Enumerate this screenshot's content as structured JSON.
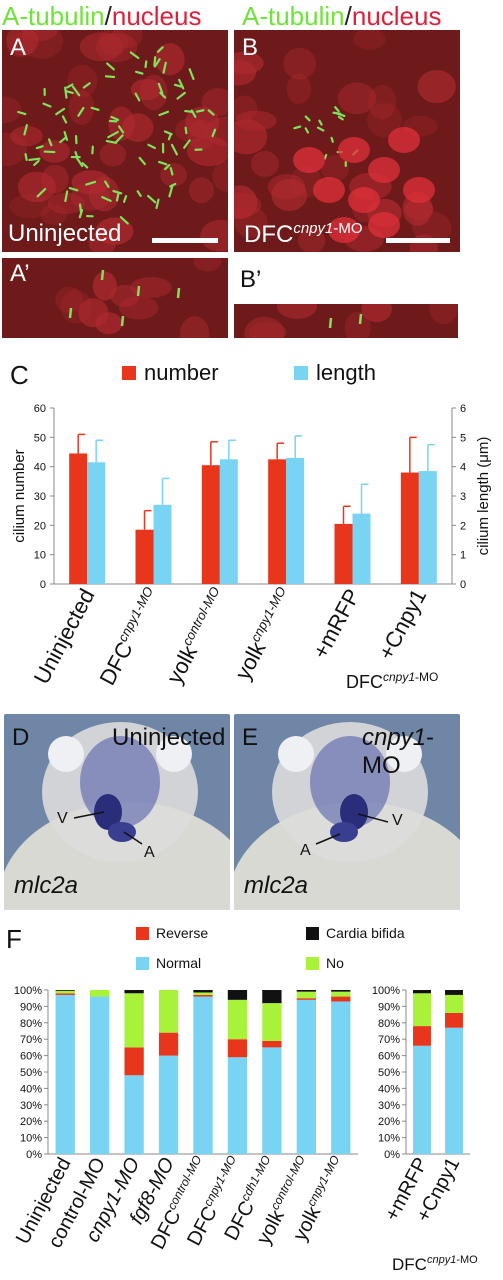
{
  "panel_A": {
    "letter": "A",
    "title_green": "A-tubulin",
    "slash": "/",
    "title_red": "nucleus",
    "label": "Uninjected"
  },
  "panel_B": {
    "letter": "B",
    "title_green": "A-tubulin",
    "slash": "/",
    "title_red": "nucleus",
    "label_main": "DFC",
    "label_sup": "cnpy1",
    "label_suffix": "-MO"
  },
  "panel_A2": {
    "letter": "A’"
  },
  "panel_B2": {
    "letter": "B’"
  },
  "panel_D": {
    "letter": "D",
    "label": "Uninjected",
    "gene": "mlc2a",
    "V": "V",
    "A": "A"
  },
  "panel_E": {
    "letter": "E",
    "label_it": "cnpy1",
    "label_rest": "-MO",
    "gene": "mlc2a",
    "V": "V",
    "A": "A"
  },
  "colors": {
    "number": "#e8361c",
    "length": "#79d3f2",
    "normal": "#79d3f2",
    "reverse": "#e8361c",
    "bifida": "#111111",
    "no": "#a8f23a",
    "cilia": "#7de35a",
    "tissue": "#6e1a1a"
  },
  "chart_data": [
    {
      "letter": "C",
      "type": "bar",
      "categories": [
        {
          "main": "Uninjected",
          "sup": ""
        },
        {
          "main": "DFC",
          "sup": "cnpy1-MO"
        },
        {
          "main": "yolk",
          "sup": "control-MO"
        },
        {
          "main": "yolk",
          "sup": "cnpy1-MO"
        },
        {
          "main": "+mRFP",
          "sup": ""
        },
        {
          "main": "+Cnpy1",
          "sup": ""
        }
      ],
      "group_label": {
        "main": "DFC",
        "sup": "cnpy1",
        "suffix": "-MO"
      },
      "series": [
        {
          "name": "number",
          "values": [
            44.5,
            18.5,
            40.5,
            42.5,
            20.5,
            38
          ],
          "errors": [
            6.5,
            6.5,
            8,
            5.5,
            6,
            12
          ],
          "axis": "left"
        },
        {
          "name": "length",
          "values": [
            4.15,
            2.7,
            4.25,
            4.3,
            2.4,
            3.85
          ],
          "errors": [
            0.75,
            0.9,
            0.65,
            0.75,
            1.0,
            0.9
          ],
          "axis": "right"
        }
      ],
      "ylabel": "cilium number",
      "y2label": "cilium length (μm)",
      "ylim": [
        0,
        60
      ],
      "y2lim": [
        0,
        6
      ],
      "yticks": [
        "0",
        "10",
        "20",
        "30",
        "40",
        "50",
        "60"
      ],
      "y2ticks": [
        "0",
        "1",
        "2",
        "3",
        "4",
        "5",
        "6"
      ],
      "grid": false,
      "legend": "top"
    },
    {
      "letter": "F",
      "type": "bar",
      "stacked": true,
      "categories": [
        {
          "main": "Uninjected",
          "sup": ""
        },
        {
          "main": "control-MO",
          "sup": ""
        },
        {
          "main": "cnpy1-MO",
          "sup": ""
        },
        {
          "main": "fgf8-MO",
          "sup": ""
        },
        {
          "main": "DFC",
          "sup": "control-MO"
        },
        {
          "main": "DFC",
          "sup": "cnpy1-MO"
        },
        {
          "main": "DFC",
          "sup": "cdh1-MO"
        },
        {
          "main": "yolk",
          "sup": "control-MO"
        },
        {
          "main": "yolk",
          "sup": "cnpy1-MO"
        }
      ],
      "series": [
        {
          "name": "Normal",
          "values": [
            97,
            96,
            48,
            60,
            96,
            59,
            65,
            94,
            93
          ]
        },
        {
          "name": "Reverse",
          "values": [
            1,
            0,
            17,
            14,
            1,
            11,
            4,
            1,
            3
          ]
        },
        {
          "name": "No",
          "values": [
            1.5,
            4,
            33,
            26,
            1.5,
            24,
            23,
            4,
            3
          ]
        },
        {
          "name": "Cardia bifida",
          "values": [
            0.5,
            0,
            2,
            0,
            1.5,
            6,
            8,
            1,
            1
          ]
        }
      ],
      "yticks": [
        "0%",
        "10%",
        "20%",
        "30%",
        "40%",
        "50%",
        "60%",
        "70%",
        "80%",
        "90%",
        "100%"
      ],
      "ylim": [
        0,
        100
      ],
      "legend": "top"
    },
    {
      "type": "bar",
      "stacked": true,
      "categories": [
        {
          "main": "+mRFP",
          "sup": ""
        },
        {
          "main": "+Cnpy1",
          "sup": ""
        }
      ],
      "group_label": {
        "main": "DFC",
        "sup": "cnpy1",
        "suffix": "-MO"
      },
      "series": [
        {
          "name": "Normal",
          "values": [
            66,
            77
          ]
        },
        {
          "name": "Reverse",
          "values": [
            12,
            9
          ]
        },
        {
          "name": "No",
          "values": [
            20,
            11
          ]
        },
        {
          "name": "Cardia bifida",
          "values": [
            2,
            3
          ]
        }
      ],
      "yticks": [
        "0%",
        "10%",
        "20%",
        "30%",
        "40%",
        "50%",
        "60%",
        "70%",
        "80%",
        "90%",
        "100%"
      ],
      "ylim": [
        0,
        100
      ]
    }
  ]
}
